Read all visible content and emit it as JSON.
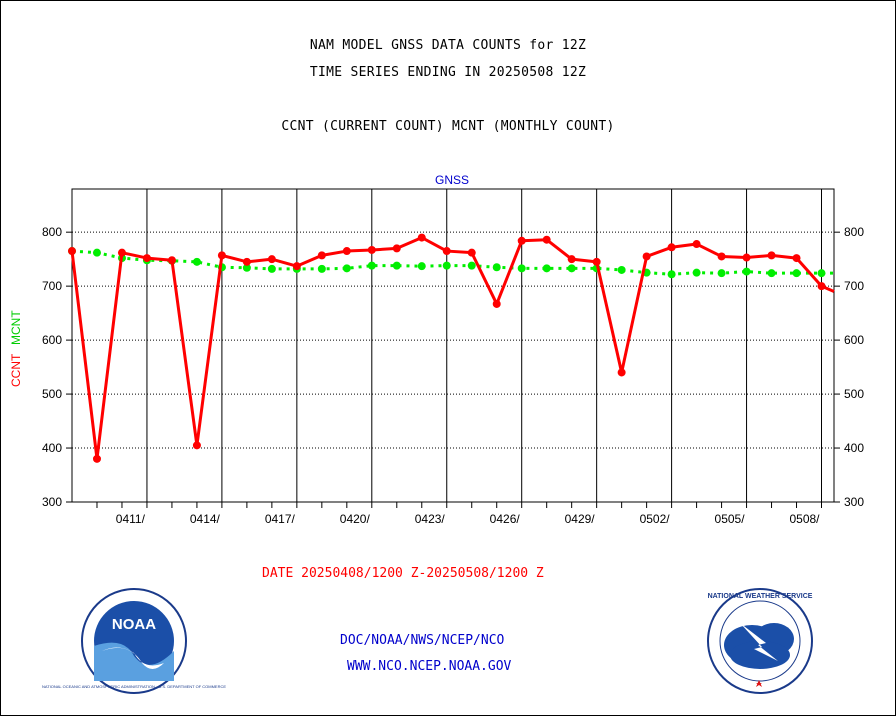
{
  "header": {
    "line1": "NAM MODEL GNSS DATA COUNTS for 12Z",
    "line2": "TIME SERIES ENDING IN 20250508 12Z",
    "line3": "CCNT (CURRENT COUNT) MCNT (MONTHLY COUNT)"
  },
  "footer": {
    "date_range": "DATE 20250408/1200 Z-20250508/1200 Z",
    "org_path": "DOC/NOAA/NWS/NCEP/NCO",
    "website": "WWW.NCO.NCEP.NOAA.GOV"
  },
  "logos": {
    "left": {
      "name": "NOAA",
      "ring_text": "NATIONAL OCEANIC AND ATMOSPHERIC ADMINISTRATION · U.S. DEPARTMENT OF COMMERCE"
    },
    "right": {
      "ring_text": "NATIONAL WEATHER SERVICE"
    }
  },
  "chart_data": {
    "type": "line",
    "title": "GNSS",
    "ylabel_left_1": "CCNT",
    "ylabel_left_2": "MCNT",
    "ylim": [
      300,
      880
    ],
    "yticks": [
      300,
      400,
      500,
      600,
      700,
      800
    ],
    "x_tick_labels": [
      "0411/",
      "0414/",
      "0417/",
      "0420/",
      "0423/",
      "0426/",
      "0429/",
      "0502/",
      "0505/",
      "0508/"
    ],
    "x_tick_positions": [
      3,
      6,
      9,
      12,
      15,
      18,
      21,
      24,
      27,
      30
    ],
    "x_range": [
      0,
      30.5
    ],
    "grid": true,
    "series": [
      {
        "name": "CCNT",
        "color": "#ff0000",
        "style": "solid",
        "x": [
          0,
          1,
          2,
          3,
          4,
          5,
          6,
          7,
          8,
          9,
          10,
          11,
          12,
          13,
          14,
          15,
          16,
          17,
          18,
          19,
          20,
          21,
          22,
          23,
          24,
          25,
          26,
          27,
          28,
          29,
          30,
          30.5
        ],
        "values": [
          765,
          380,
          762,
          752,
          748,
          405,
          757,
          745,
          750,
          737,
          757,
          765,
          767,
          770,
          790,
          765,
          762,
          667,
          784,
          786,
          750,
          745,
          540,
          755,
          772,
          778,
          755,
          753,
          757,
          752,
          700,
          690
        ]
      },
      {
        "name": "MCNT",
        "color": "#00ee00",
        "style": "dotted",
        "x": [
          0,
          1,
          2,
          3,
          4,
          5,
          6,
          7,
          8,
          9,
          10,
          11,
          12,
          13,
          14,
          15,
          16,
          17,
          18,
          19,
          20,
          21,
          22,
          23,
          24,
          25,
          26,
          27,
          28,
          29,
          30,
          30.5
        ],
        "values": [
          765,
          762,
          752,
          748,
          747,
          745,
          735,
          734,
          732,
          732,
          732,
          733,
          738,
          738,
          737,
          738,
          738,
          735,
          733,
          733,
          733,
          733,
          730,
          725,
          722,
          725,
          724,
          727,
          724,
          724,
          724,
          724
        ]
      }
    ]
  }
}
